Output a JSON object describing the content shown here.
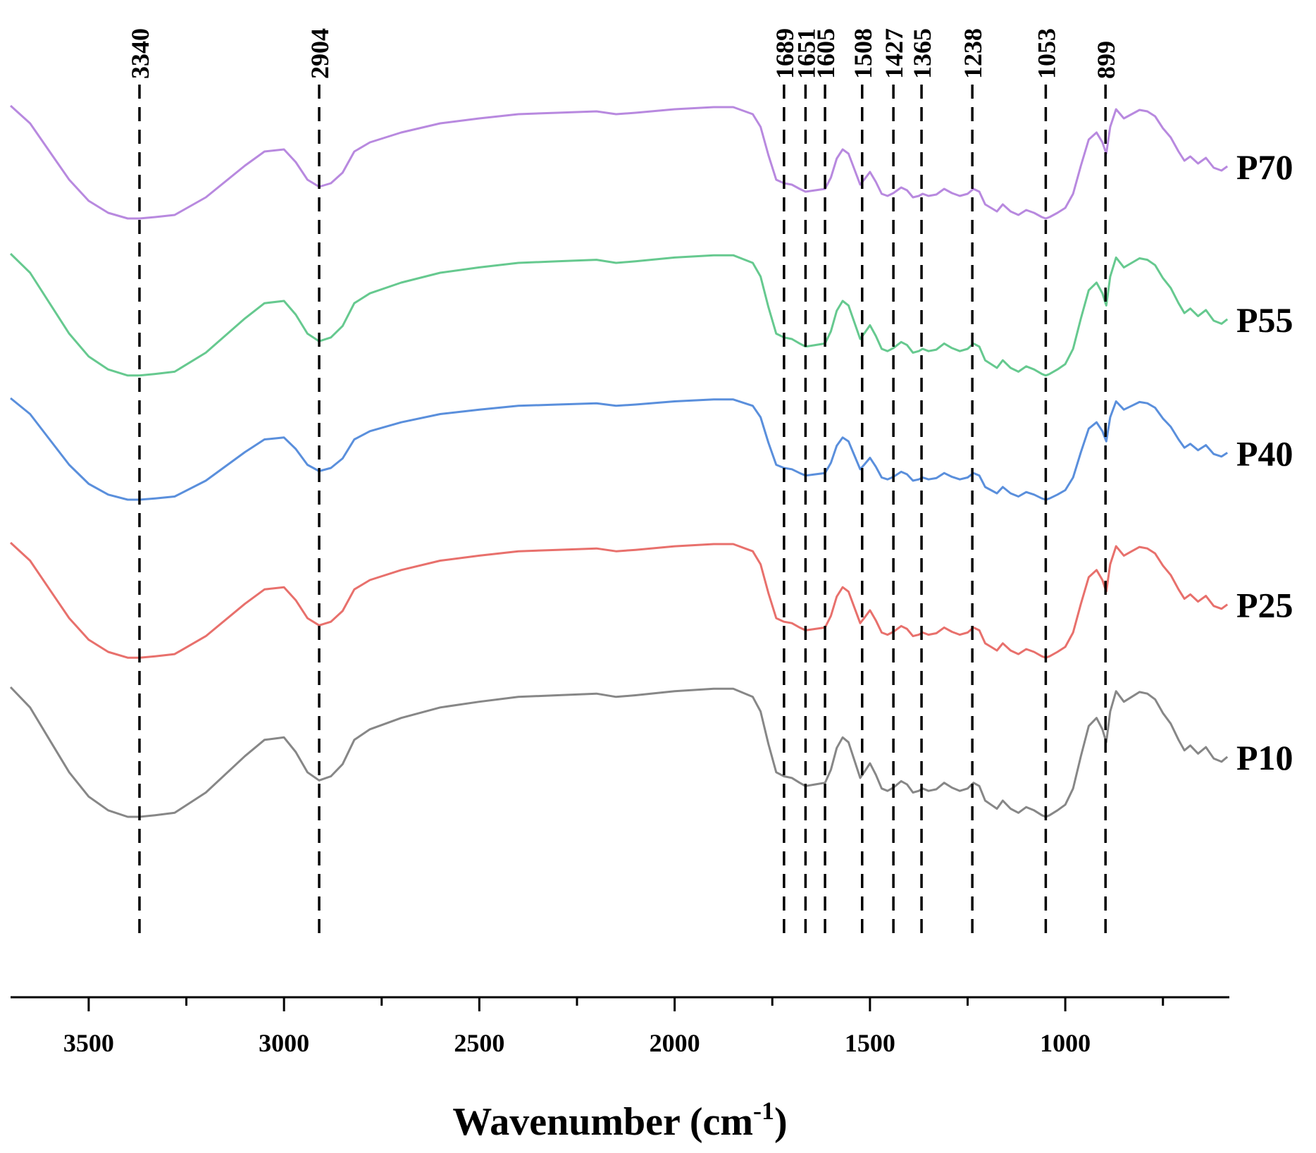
{
  "chart_data": {
    "type": "line",
    "title": "",
    "xlabel": "Wavenumber (cm",
    "xlabel_sup": "-1",
    "xlabel_close": ")",
    "ylabel": "",
    "xlim": [
      3700,
      580
    ],
    "x_reversed": true,
    "grid": false,
    "xticks": [
      {
        "value": 3500,
        "label": "3500"
      },
      {
        "value": 3000,
        "label": "3000"
      },
      {
        "value": 2500,
        "label": "2500"
      },
      {
        "value": 2000,
        "label": "2000"
      },
      {
        "value": 1500,
        "label": "1500"
      },
      {
        "value": 1000,
        "label": "1000"
      }
    ],
    "xminor": [
      3250,
      2750,
      2250,
      1750,
      1250,
      750
    ],
    "peaks": [
      {
        "label": "3340",
        "x": 3370
      },
      {
        "label": "2904",
        "x": 2910
      },
      {
        "label": "1689",
        "x": 1720
      },
      {
        "label": "1651",
        "x": 1665
      },
      {
        "label": "1605",
        "x": 1615
      },
      {
        "label": "1508",
        "x": 1520
      },
      {
        "label": "1427",
        "x": 1440
      },
      {
        "label": "1365",
        "x": 1368
      },
      {
        "label": "1238",
        "x": 1238
      },
      {
        "label": "1053",
        "x": 1050
      },
      {
        "label": "899",
        "x": 897
      }
    ],
    "shape_x": [
      3700,
      3650,
      3600,
      3550,
      3500,
      3450,
      3400,
      3370,
      3330,
      3280,
      3200,
      3100,
      3050,
      3000,
      2970,
      2940,
      2910,
      2880,
      2850,
      2820,
      2780,
      2700,
      2600,
      2500,
      2400,
      2300,
      2200,
      2150,
      2100,
      2000,
      1900,
      1850,
      1800,
      1780,
      1760,
      1740,
      1720,
      1700,
      1680,
      1665,
      1640,
      1615,
      1600,
      1585,
      1570,
      1555,
      1540,
      1525,
      1515,
      1500,
      1485,
      1470,
      1455,
      1440,
      1420,
      1405,
      1390,
      1375,
      1365,
      1350,
      1330,
      1310,
      1290,
      1270,
      1250,
      1235,
      1220,
      1205,
      1190,
      1175,
      1160,
      1140,
      1120,
      1100,
      1080,
      1060,
      1050,
      1040,
      1020,
      1000,
      980,
      960,
      940,
      920,
      905,
      895,
      885,
      870,
      850,
      830,
      810,
      790,
      770,
      750,
      730,
      710,
      695,
      680,
      660,
      640,
      620,
      600,
      585
    ],
    "shape_y": [
      0,
      25,
      65,
      105,
      135,
      152,
      160,
      160,
      158,
      155,
      130,
      85,
      65,
      62,
      80,
      105,
      115,
      110,
      95,
      65,
      52,
      38,
      25,
      18,
      12,
      10,
      8,
      12,
      10,
      5,
      2,
      2,
      12,
      30,
      70,
      105,
      110,
      112,
      118,
      122,
      120,
      118,
      102,
      75,
      62,
      68,
      90,
      112,
      105,
      94,
      108,
      125,
      128,
      124,
      116,
      120,
      130,
      128,
      125,
      128,
      126,
      118,
      124,
      128,
      125,
      118,
      122,
      140,
      145,
      150,
      140,
      150,
      155,
      148,
      152,
      158,
      160,
      158,
      152,
      145,
      125,
      85,
      48,
      38,
      52,
      68,
      30,
      5,
      18,
      12,
      6,
      8,
      15,
      32,
      45,
      65,
      78,
      72,
      82,
      74,
      88,
      92,
      86
    ],
    "amp": [
      1.0,
      1.08,
      0.9,
      1.02,
      1.15
    ],
    "series": [
      {
        "name": "P70",
        "color": "#b889df",
        "offset": 0
      },
      {
        "name": "P55",
        "color": "#66c98f",
        "offset": 210
      },
      {
        "name": "P40",
        "color": "#5a8fdc",
        "offset": 415
      },
      {
        "name": "P25",
        "color": "#e8706c",
        "offset": 620
      },
      {
        "name": "P10",
        "color": "#878787",
        "offset": 825
      }
    ]
  }
}
